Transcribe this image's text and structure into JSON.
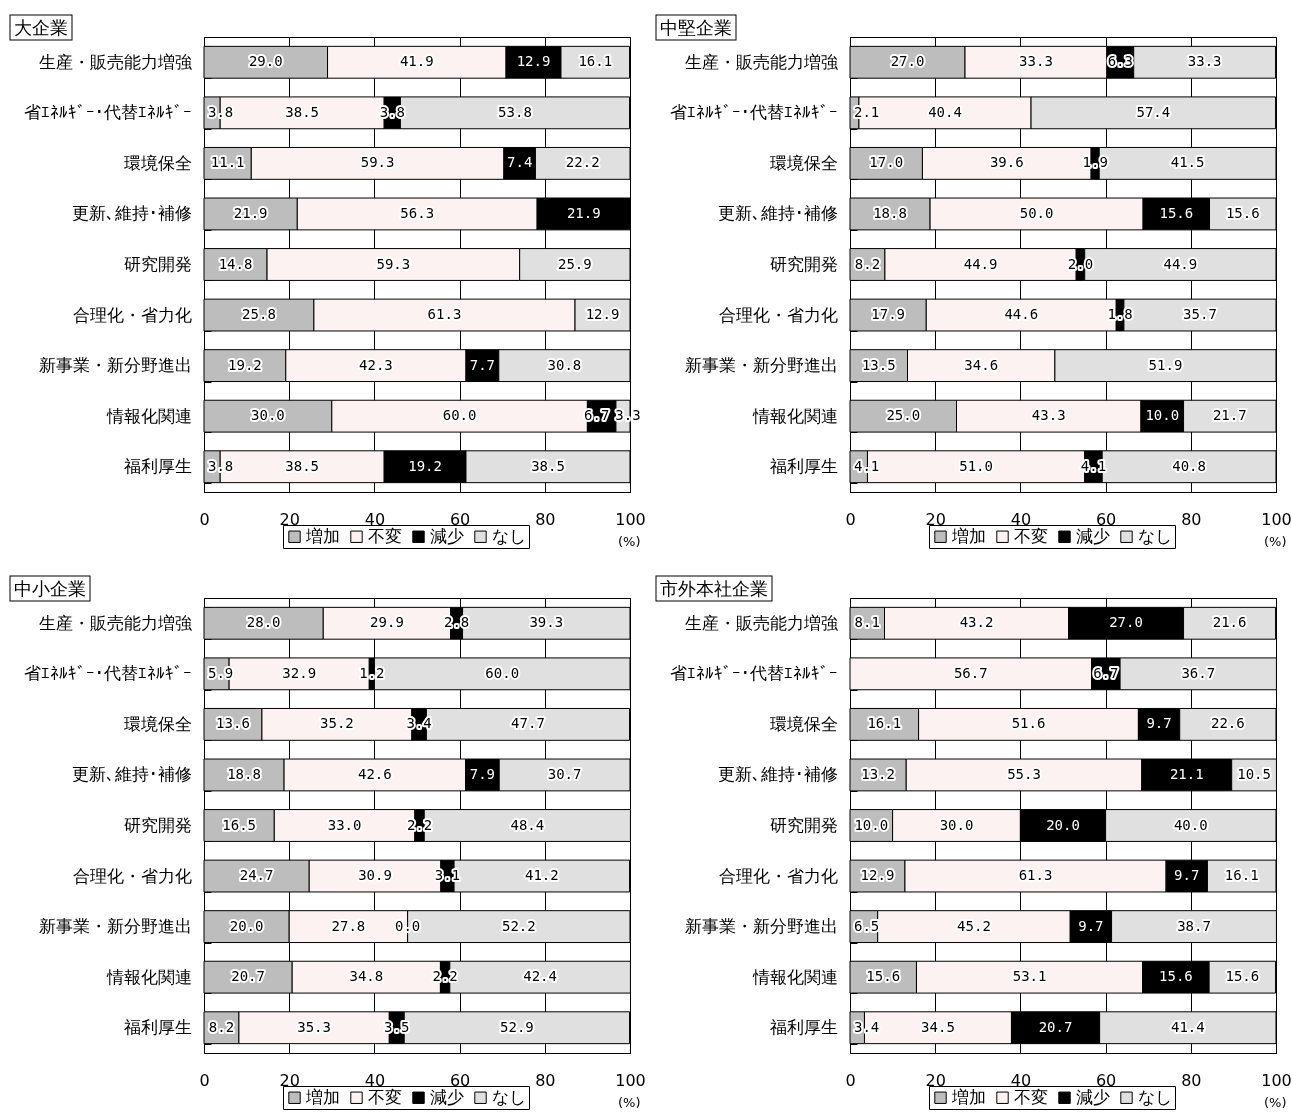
{
  "chart_data": [
    {
      "type": "bar",
      "orientation": "horizontal",
      "stacked": true,
      "title": "大企業",
      "xlabel": "(%)",
      "categories": [
        "生産・販売能力増強",
        "省ｴﾈﾙｷﾞｰ･代替ｴﾈﾙｷﾞｰ",
        "環境保全",
        "更新､維持･補修",
        "研究開発",
        "合理化・省力化",
        "新事業・新分野進出",
        "情報化関連",
        "福利厚生"
      ],
      "series": [
        {
          "name": "増加",
          "color": "#bdbdbd",
          "values": [
            29.0,
            3.8,
            11.1,
            21.9,
            14.8,
            25.8,
            19.2,
            30.0,
            3.8
          ],
          "value_labels": [
            "29.0",
            "3.8",
            "11.1",
            "21.9",
            "14.8",
            "25.8",
            "19.2",
            "30.0",
            "3.8"
          ]
        },
        {
          "name": "不変",
          "color": "#fcf2f2",
          "values": [
            41.9,
            38.5,
            59.3,
            56.3,
            59.3,
            61.3,
            42.3,
            60.0,
            38.5
          ],
          "value_labels": [
            "41.9",
            "38.5",
            "59.3",
            "56.3",
            "59.3",
            "61.3",
            "42.3",
            "60.0",
            "38.5"
          ]
        },
        {
          "name": "減少",
          "color": "#000000",
          "values": [
            12.9,
            3.8,
            7.4,
            21.9,
            null,
            null,
            7.7,
            6.7,
            19.2
          ],
          "value_labels": [
            "12.9",
            "3.8",
            "7.4",
            "21.9",
            null,
            null,
            "7.7",
            "6.7",
            "19.2"
          ]
        },
        {
          "name": "なし",
          "color": "#e0e0e0",
          "values": [
            16.1,
            53.8,
            22.2,
            null,
            25.9,
            12.9,
            30.8,
            3.3,
            38.5
          ],
          "value_labels": [
            "16.1",
            "53.8",
            "22.2",
            null,
            "25.9",
            "12.9",
            "30.8",
            "3.3",
            "38.5"
          ]
        }
      ],
      "xlim": [
        0,
        100
      ],
      "xticks": [
        0,
        20,
        40,
        60,
        80,
        100
      ],
      "grid": "x",
      "legend": "bottom"
    },
    {
      "type": "bar",
      "orientation": "horizontal",
      "stacked": true,
      "title": "中堅企業",
      "xlabel": "(%)",
      "categories": [
        "生産・販売能力増強",
        "省ｴﾈﾙｷﾞｰ･代替ｴﾈﾙｷﾞｰ",
        "環境保全",
        "更新､維持･補修",
        "研究開発",
        "合理化・省力化",
        "新事業・新分野進出",
        "情報化関連",
        "福利厚生"
      ],
      "series": [
        {
          "name": "増加",
          "color": "#bdbdbd",
          "values": [
            27.0,
            2.1,
            17.0,
            18.8,
            8.2,
            17.9,
            13.5,
            25.0,
            4.1
          ],
          "value_labels": [
            "27.0",
            "2.1",
            "17.0",
            "18.8",
            "8.2",
            "17.9",
            "13.5",
            "25.0",
            "4.1"
          ]
        },
        {
          "name": "不変",
          "color": "#fcf2f2",
          "values": [
            33.3,
            40.4,
            39.6,
            50.0,
            44.9,
            44.6,
            34.6,
            43.3,
            51.0
          ],
          "value_labels": [
            "33.3",
            "40.4",
            "39.6",
            "50.0",
            "44.9",
            "44.6",
            "34.6",
            "43.3",
            "51.0"
          ]
        },
        {
          "name": "減少",
          "color": "#000000",
          "values": [
            6.3,
            null,
            1.9,
            15.6,
            2.0,
            1.8,
            null,
            10.0,
            4.1
          ],
          "value_labels": [
            "6.3",
            null,
            "1.9",
            "15.6",
            "2.0",
            "1.8",
            null,
            "10.0",
            "4.1"
          ]
        },
        {
          "name": "なし",
          "color": "#e0e0e0",
          "values": [
            33.3,
            57.4,
            41.5,
            15.6,
            44.9,
            35.7,
            51.9,
            21.7,
            40.8
          ],
          "value_labels": [
            "33.3",
            "57.4",
            "41.5",
            "15.6",
            "44.9",
            "35.7",
            "51.9",
            "21.7",
            "40.8"
          ]
        }
      ],
      "xlim": [
        0,
        100
      ],
      "xticks": [
        0,
        20,
        40,
        60,
        80,
        100
      ],
      "grid": "x",
      "legend": "bottom"
    },
    {
      "type": "bar",
      "orientation": "horizontal",
      "stacked": true,
      "title": "中小企業",
      "xlabel": "(%)",
      "categories": [
        "生産・販売能力増強",
        "省ｴﾈﾙｷﾞｰ･代替ｴﾈﾙｷﾞｰ",
        "環境保全",
        "更新､維持･補修",
        "研究開発",
        "合理化・省力化",
        "新事業・新分野進出",
        "情報化関連",
        "福利厚生"
      ],
      "series": [
        {
          "name": "増加",
          "color": "#bdbdbd",
          "values": [
            28.0,
            5.9,
            13.6,
            18.8,
            16.5,
            24.7,
            20.0,
            20.7,
            8.2
          ],
          "value_labels": [
            "28.0",
            "5.9",
            "13.6",
            "18.8",
            "16.5",
            "24.7",
            "20.0",
            "20.7",
            "8.2"
          ]
        },
        {
          "name": "不変",
          "color": "#fcf2f2",
          "values": [
            29.9,
            32.9,
            35.2,
            42.6,
            33.0,
            30.9,
            27.8,
            34.8,
            35.3
          ],
          "value_labels": [
            "29.9",
            "32.9",
            "35.2",
            "42.6",
            "33.0",
            "30.9",
            "27.8",
            "34.8",
            "35.3"
          ]
        },
        {
          "name": "減少",
          "color": "#000000",
          "values": [
            2.8,
            1.2,
            3.4,
            7.9,
            2.2,
            3.1,
            0.0,
            2.2,
            3.5
          ],
          "value_labels": [
            "2.8",
            "1.2",
            "3.4",
            "7.9",
            "2.2",
            "3.1",
            "0.0",
            "2.2",
            "3.5"
          ]
        },
        {
          "name": "なし",
          "color": "#e0e0e0",
          "values": [
            39.3,
            60.0,
            47.7,
            30.7,
            48.4,
            41.2,
            52.2,
            42.4,
            52.9
          ],
          "value_labels": [
            "39.3",
            "60.0",
            "47.7",
            "30.7",
            "48.4",
            "41.2",
            "52.2",
            "42.4",
            "52.9"
          ]
        }
      ],
      "xlim": [
        0,
        100
      ],
      "xticks": [
        0,
        20,
        40,
        60,
        80,
        100
      ],
      "grid": "x",
      "legend": "bottom"
    },
    {
      "type": "bar",
      "orientation": "horizontal",
      "stacked": true,
      "title": "市外本社企業",
      "xlabel": "(%)",
      "categories": [
        "生産・販売能力増強",
        "省ｴﾈﾙｷﾞｰ･代替ｴﾈﾙｷﾞｰ",
        "環境保全",
        "更新､維持･補修",
        "研究開発",
        "合理化・省力化",
        "新事業・新分野進出",
        "情報化関連",
        "福利厚生"
      ],
      "series": [
        {
          "name": "増加",
          "color": "#bdbdbd",
          "values": [
            8.1,
            null,
            16.1,
            13.2,
            10.0,
            12.9,
            6.5,
            15.6,
            3.4
          ],
          "value_labels": [
            "8.1",
            null,
            "16.1",
            "13.2",
            "10.0",
            "12.9",
            "6.5",
            "15.6",
            "3.4"
          ]
        },
        {
          "name": "不変",
          "color": "#fcf2f2",
          "values": [
            43.2,
            56.7,
            51.6,
            55.3,
            30.0,
            61.3,
            45.2,
            53.1,
            34.5
          ],
          "value_labels": [
            "43.2",
            "56.7",
            "51.6",
            "55.3",
            "30.0",
            "61.3",
            "45.2",
            "53.1",
            "34.5"
          ]
        },
        {
          "name": "減少",
          "color": "#000000",
          "values": [
            27.0,
            6.7,
            9.7,
            21.1,
            20.0,
            9.7,
            9.7,
            15.6,
            20.7
          ],
          "value_labels": [
            "27.0",
            "6.7",
            "9.7",
            "21.1",
            "20.0",
            "9.7",
            "9.7",
            "15.6",
            "20.7"
          ]
        },
        {
          "name": "なし",
          "color": "#e0e0e0",
          "values": [
            21.6,
            36.7,
            22.6,
            10.5,
            40.0,
            16.1,
            38.7,
            15.6,
            41.4
          ],
          "value_labels": [
            "21.6",
            "36.7",
            "22.6",
            "10.5",
            "40.0",
            "16.1",
            "38.7",
            "15.6",
            "41.4"
          ]
        }
      ],
      "xlim": [
        0,
        100
      ],
      "xticks": [
        0,
        20,
        40,
        60,
        80,
        100
      ],
      "grid": "x",
      "legend": "bottom"
    }
  ]
}
